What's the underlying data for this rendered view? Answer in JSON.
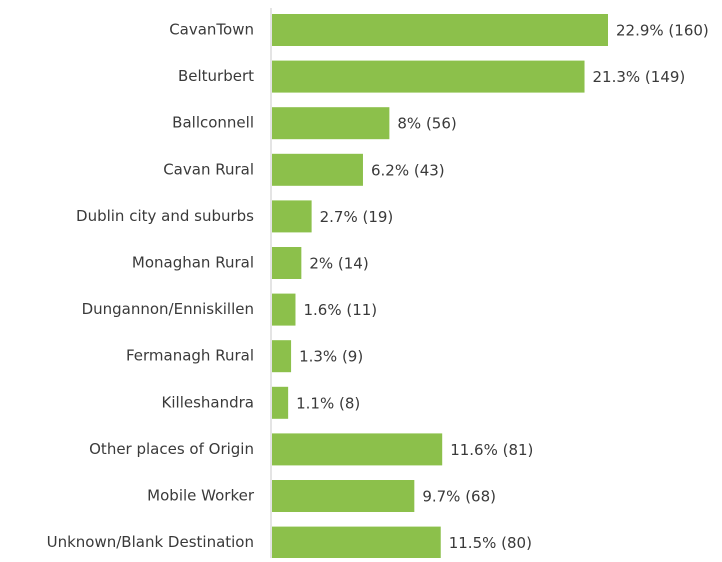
{
  "chart_data": {
    "type": "bar",
    "orientation": "horizontal",
    "color": "#8cc04b",
    "categories": [
      "CavanTown",
      "Belturbert",
      "Ballconnell",
      "Cavan Rural",
      "Dublin city and suburbs",
      "Monaghan Rural",
      "Dungannon/Enniskillen",
      "Fermanagh Rural",
      "Killeshandra",
      "Other places of Origin",
      "Mobile Worker",
      "Unknown/Blank Destination"
    ],
    "values": [
      22.9,
      21.3,
      8,
      6.2,
      2.7,
      2,
      1.6,
      1.3,
      1.1,
      11.6,
      9.7,
      11.5
    ],
    "value_labels": [
      "22.9% (160)",
      "21.3% (149)",
      "8% (56)",
      "6.2% (43)",
      "2.7% (19)",
      "2% (14)",
      "1.6% (11)",
      "1.3% (9)",
      "1.1% (8)",
      "11.6% (81)",
      "9.7% (68)",
      "11.5% (80)"
    ]
  }
}
